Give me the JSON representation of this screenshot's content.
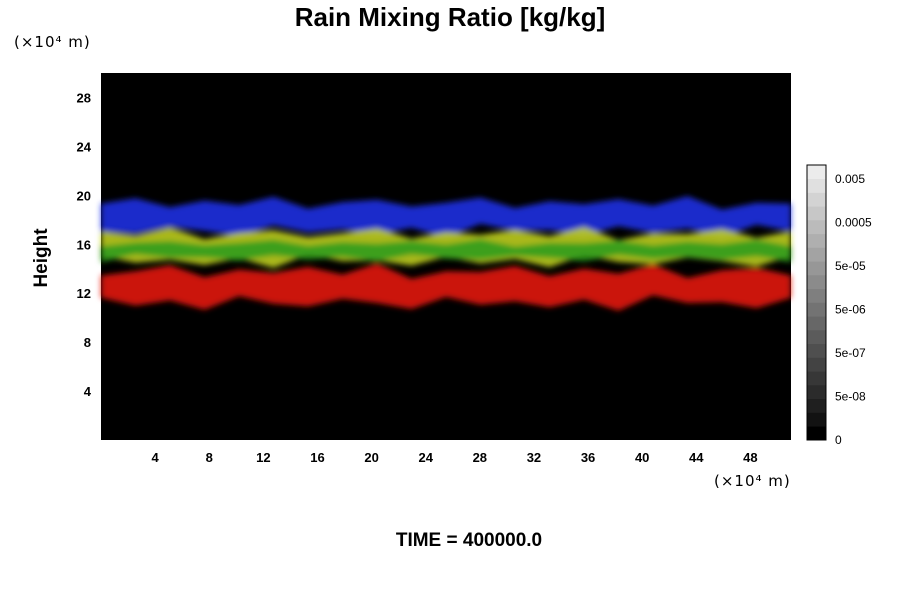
{
  "chart_data": {
    "type": "heatmap",
    "title": "Rain Mixing Ratio [kg/kg]",
    "ylabel": "Height",
    "x_unit": "(×10⁴ m)",
    "y_unit": "(×10⁴ m)",
    "xlim": [
      0,
      51
    ],
    "ylim": [
      0,
      30
    ],
    "x_ticks": [
      4,
      8,
      12,
      16,
      20,
      24,
      28,
      32,
      36,
      40,
      44,
      48
    ],
    "y_ticks": [
      4,
      8,
      12,
      16,
      20,
      24,
      28
    ],
    "background_color": "#000000",
    "colorbar": {
      "labels": [
        "0.005",
        "0.0005",
        "5e-05",
        "5e-06",
        "5e-07",
        "5e-08",
        "0"
      ],
      "colors": [
        "#000000",
        "#121212",
        "#1f1f1f",
        "#2b2b2b",
        "#373737",
        "#434343",
        "#4f4f4f",
        "#5b5b5b",
        "#676767",
        "#737373",
        "#7f7f7f",
        "#8b8b8b",
        "#979797",
        "#a3a3a3",
        "#afafaf",
        "#bbbbbb",
        "#c7c7c7",
        "#d3d3d3",
        "#e0e0e0",
        "#ececec"
      ]
    },
    "layers": [
      {
        "color": "#2233ee",
        "y_range": [
          16.5,
          20
        ]
      },
      {
        "color": "#c8d820",
        "y_range": [
          14,
          17.5
        ]
      },
      {
        "color": "#2a9a1a",
        "y_range": [
          14.5,
          16.5
        ]
      },
      {
        "color": "#ee1a10",
        "y_range": [
          10.5,
          14.5
        ]
      }
    ]
  },
  "footer": {
    "time_label": "TIME = 400000.0"
  }
}
